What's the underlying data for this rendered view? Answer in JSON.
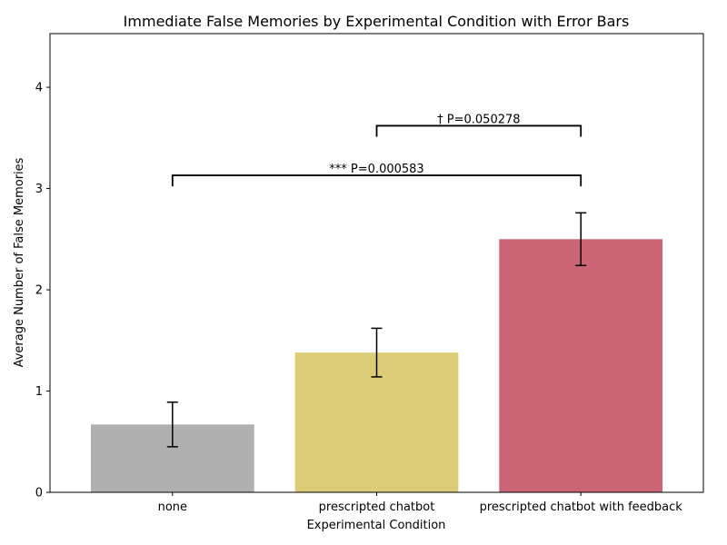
{
  "chart_data": {
    "type": "bar",
    "title": "Immediate False Memories by Experimental Condition with Error Bars",
    "xlabel": "Experimental Condition",
    "ylabel": "Average Number of False Memories",
    "categories": [
      "none",
      "prescripted chatbot",
      "prescripted chatbot with feedback"
    ],
    "values": [
      0.67,
      1.38,
      2.5
    ],
    "errors": [
      0.22,
      0.24,
      0.26
    ],
    "colors": [
      "#b0b0b0",
      "#ddcc77",
      "#cc6677"
    ],
    "ylim": [
      0,
      4.53
    ],
    "yticks": [
      0,
      1,
      2,
      3,
      4
    ],
    "grid": false,
    "annotations": [
      {
        "text": "*** P=0.000583",
        "from": 0,
        "to": 2,
        "level": 3.13
      },
      {
        "text": "† P=0.050278",
        "from": 1,
        "to": 2,
        "level": 3.62
      }
    ]
  }
}
